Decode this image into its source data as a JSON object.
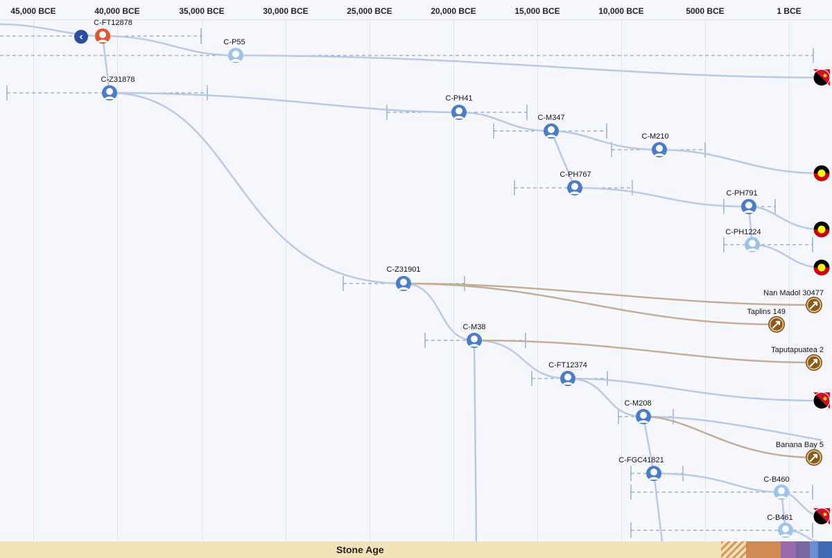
{
  "axis": {
    "ticks": [
      "45,000 BCE",
      "40,000 BCE",
      "35,000 BCE",
      "30,000 BCE",
      "25,000 BCE",
      "20,000 BCE",
      "15,000 BCE",
      "10,000 BCE",
      "5000 BCE",
      "1 BCE"
    ]
  },
  "nodes": [
    {
      "id": "ft12878",
      "label": "C-FT12878",
      "kind": "root",
      "color": "#e0562f"
    },
    {
      "id": "p55",
      "label": "C-P55",
      "kind": "light"
    },
    {
      "id": "z31878",
      "label": "C-Z31878",
      "kind": "dark"
    },
    {
      "id": "ph41",
      "label": "C-PH41",
      "kind": "dark"
    },
    {
      "id": "m347",
      "label": "C-M347",
      "kind": "dark"
    },
    {
      "id": "m210",
      "label": "C-M210",
      "kind": "dark"
    },
    {
      "id": "ph767",
      "label": "C-PH767",
      "kind": "dark"
    },
    {
      "id": "ph791",
      "label": "C-PH791",
      "kind": "dark"
    },
    {
      "id": "ph1224",
      "label": "C-PH1224",
      "kind": "light"
    },
    {
      "id": "z31901",
      "label": "C-Z31901",
      "kind": "dark"
    },
    {
      "id": "m38",
      "label": "C-M38",
      "kind": "dark"
    },
    {
      "id": "ft12374",
      "label": "C-FT12374",
      "kind": "dark"
    },
    {
      "id": "m208",
      "label": "C-M208",
      "kind": "dark"
    },
    {
      "id": "fgc41821",
      "label": "C-FGC41821",
      "kind": "dark"
    },
    {
      "id": "b460",
      "label": "C-B460",
      "kind": "light"
    },
    {
      "id": "b461",
      "label": "C-B461",
      "kind": "light"
    }
  ],
  "samples": [
    {
      "id": "nan-madol",
      "label": "Nan Madol 30477"
    },
    {
      "id": "taplins",
      "label": "Taplins 149"
    },
    {
      "id": "taputapuatea",
      "label": "Taputapuatea 2"
    },
    {
      "id": "banana-bay",
      "label": "Banana Bay 5"
    }
  ],
  "flags": [
    "papua-new-guinea",
    "aboriginal",
    "aboriginal",
    "aboriginal",
    "papua-new-guinea",
    "papua-new-guinea"
  ],
  "colors": {
    "branch": "#b7c9e6",
    "ancient": "#c4ad96",
    "node_dark": "#4a7cc7",
    "node_light": "#9cc3ea",
    "root": "#e0562f",
    "sample": "#8b5a1e",
    "range": "#6f8fa6"
  },
  "nav": {
    "back_glyph": "‹"
  },
  "eras": {
    "main": "Stone Age"
  }
}
